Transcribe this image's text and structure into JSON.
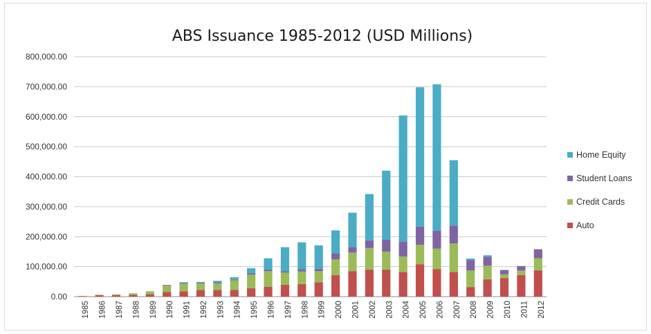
{
  "chart_data": {
    "type": "bar",
    "stacked": true,
    "title": "ABS Issuance 1985-2012 (USD Millions)",
    "xlabel": "",
    "ylabel": "",
    "ylim": [
      0,
      800000
    ],
    "yticks": [
      "0.00",
      "100,000.00",
      "200,000.00",
      "300,000.00",
      "400,000.00",
      "500,000.00",
      "600,000.00",
      "700,000.00",
      "800,000.00"
    ],
    "grid": true,
    "legend_position": "right",
    "categories": [
      "1985",
      "1986",
      "1987",
      "1988",
      "1989",
      "1990",
      "1991",
      "1992",
      "1993",
      "1994",
      "1995",
      "1996",
      "1997",
      "1998",
      "1999",
      "2000",
      "2001",
      "2002",
      "2003",
      "2004",
      "2005",
      "2006",
      "2007",
      "2008",
      "2009",
      "2010",
      "2011",
      "2012"
    ],
    "series": [
      {
        "name": "Auto",
        "color": "#c0504d",
        "values": [
          2000,
          5000,
          5000,
          6000,
          8000,
          15000,
          18000,
          22000,
          22000,
          22000,
          28000,
          33000,
          40000,
          42000,
          48000,
          72000,
          85000,
          90000,
          90000,
          82000,
          108000,
          92000,
          82000,
          32000,
          58000,
          62000,
          72000,
          88000
        ]
      },
      {
        "name": "Credit Cards",
        "color": "#9bbb59",
        "values": [
          500,
          1500,
          3000,
          5000,
          10000,
          22000,
          25000,
          22000,
          22000,
          32000,
          45000,
          52000,
          40000,
          42000,
          37000,
          52000,
          62000,
          72000,
          60000,
          52000,
          65000,
          68000,
          95000,
          55000,
          45000,
          12000,
          15000,
          40000
        ]
      },
      {
        "name": "Student Loans",
        "color": "#8064a2",
        "values": [
          0,
          0,
          0,
          0,
          0,
          2000,
          2000,
          2000,
          3000,
          3000,
          5000,
          5000,
          5000,
          7000,
          8000,
          20000,
          18000,
          25000,
          40000,
          50000,
          60000,
          60000,
          60000,
          35000,
          30000,
          15000,
          15000,
          30000
        ]
      },
      {
        "name": "Home Equity",
        "color": "#4bacc6",
        "values": [
          0,
          0,
          0,
          0,
          0,
          0,
          3000,
          3000,
          6000,
          8000,
          17000,
          38000,
          80000,
          90000,
          78000,
          77000,
          115000,
          155000,
          230000,
          420000,
          465000,
          488000,
          218000,
          5000,
          5000,
          0,
          0,
          0
        ]
      }
    ]
  }
}
